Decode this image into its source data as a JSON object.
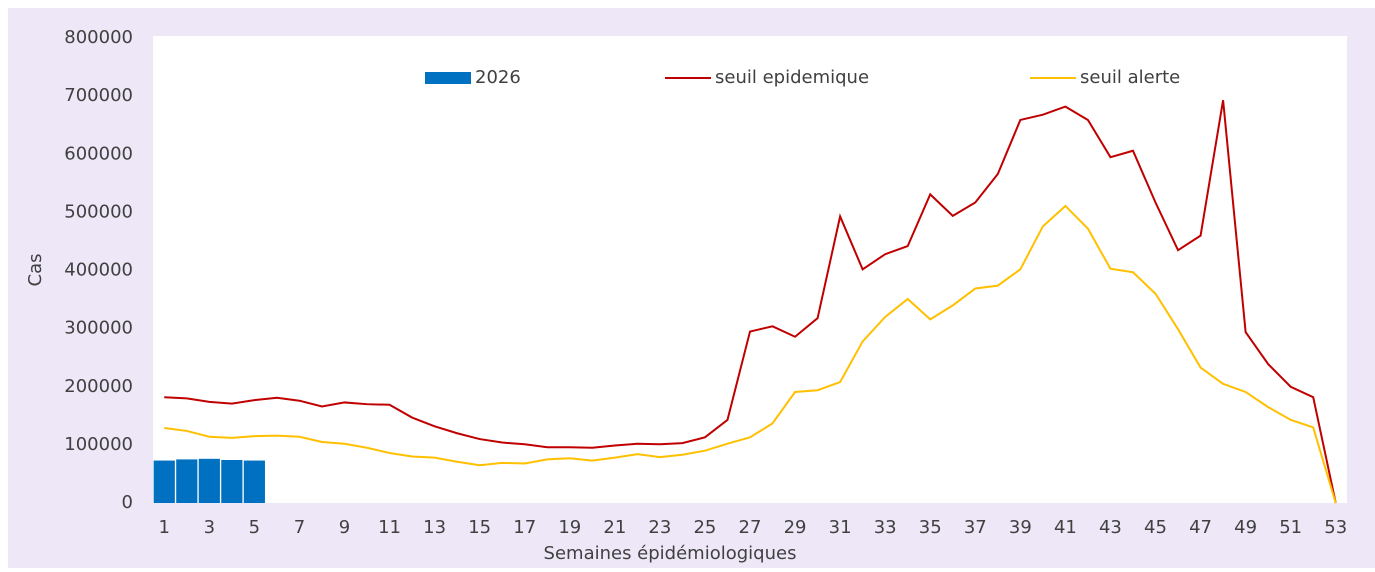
{
  "chart_data": {
    "type": "bar",
    "xlabel": "Semaines épidémiologiques",
    "ylabel": "Cas",
    "categories": [
      1,
      null,
      3,
      null,
      5,
      null,
      7,
      null,
      9,
      null,
      11,
      null,
      13,
      null,
      15,
      null,
      17,
      null,
      19,
      null,
      21,
      null,
      23,
      null,
      25,
      null,
      27,
      null,
      29,
      null,
      31,
      null,
      33,
      null,
      35,
      null,
      37,
      null,
      39,
      null,
      41,
      null,
      43,
      null,
      45,
      null,
      47,
      null,
      49,
      null,
      51,
      null,
      53
    ],
    "series": [
      {
        "name": "2026",
        "type": "bar",
        "color": "#0070c0",
        "values": [
          73000,
          75000,
          76000,
          74000,
          73000,
          null,
          null,
          null,
          null,
          null,
          null,
          null,
          null,
          null,
          null,
          null,
          null,
          null,
          null,
          null,
          null,
          null,
          null,
          null,
          null,
          null,
          null,
          null,
          null,
          null,
          null,
          null,
          null,
          null,
          null,
          null,
          null,
          null,
          null,
          null,
          null,
          null,
          null,
          null,
          null,
          null,
          null,
          null,
          null,
          null,
          null,
          null,
          null
        ]
      },
      {
        "name": "seuil epidemique",
        "type": "line",
        "color": "#c00000",
        "values": [
          182000,
          180000,
          174000,
          171000,
          177000,
          181000,
          176000,
          166000,
          173000,
          170000,
          169000,
          147000,
          132000,
          120000,
          110000,
          104000,
          101000,
          96000,
          96000,
          95000,
          99000,
          102000,
          101000,
          103000,
          113000,
          143000,
          295000,
          304000,
          286000,
          318000,
          493000,
          402000,
          428000,
          442000,
          531000,
          494000,
          517000,
          566000,
          659000,
          668000,
          682000,
          659000,
          595000,
          606000,
          517000,
          435000,
          460000,
          693000,
          294000,
          239000,
          200000,
          182000,
          0
        ]
      },
      {
        "name": "seuil alerte",
        "type": "line",
        "color": "#ffc000",
        "values": [
          129000,
          124000,
          114000,
          112000,
          115000,
          116000,
          114000,
          105000,
          102000,
          95000,
          86000,
          80000,
          78000,
          71000,
          65000,
          69000,
          68000,
          75000,
          77000,
          73000,
          78000,
          84000,
          79000,
          83000,
          90000,
          102000,
          113000,
          137000,
          191000,
          194000,
          208000,
          278000,
          320000,
          351000,
          316000,
          340000,
          369000,
          374000,
          402000,
          476000,
          511000,
          472000,
          403000,
          397000,
          360000,
          299000,
          233000,
          205000,
          191000,
          165000,
          143000,
          130000,
          0
        ]
      }
    ],
    "ylim": [
      0,
      800000
    ],
    "yticks": [
      0,
      100000,
      200000,
      300000,
      400000,
      500000,
      600000,
      700000,
      800000
    ],
    "grid": false,
    "legend": "top"
  }
}
